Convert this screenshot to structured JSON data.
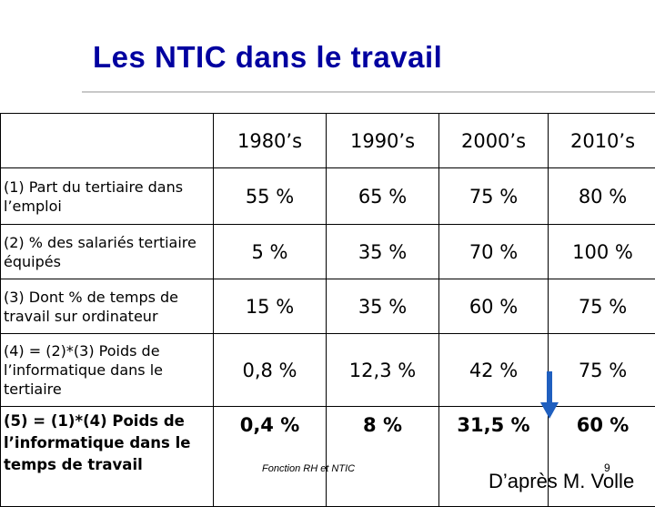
{
  "title": "Les NTIC dans le travail",
  "table": {
    "headers": [
      "",
      "1980’s",
      "1990’s",
      "2000’s",
      "2010’s"
    ],
    "rows": [
      {
        "label": "(1) Part du tertiaire dans l’emploi",
        "values": [
          "55 %",
          "65 %",
          "75 %",
          "80 %"
        ],
        "bold": false
      },
      {
        "label": "(2) % des salariés tertiaire équipés",
        "values": [
          "5 %",
          "35 %",
          "70 %",
          "100 %"
        ],
        "bold": false
      },
      {
        "label": "(3) Dont % de temps de travail sur ordinateur",
        "values": [
          "15 %",
          "35 %",
          "60 %",
          "75 %"
        ],
        "bold": false
      },
      {
        "label": "(4) = (2)*(3) Poids de l’informatique dans le tertiaire",
        "values": [
          "0,8 %",
          "12,3 %",
          "42 %",
          "75 %"
        ],
        "bold": false
      },
      {
        "label": "(5) = (1)*(4) Poids de l’informatique dans le temps de travail",
        "values": [
          "0,4 %",
          "8 %",
          "31,5 %",
          "60 %"
        ],
        "bold": true
      }
    ]
  },
  "arrow_icon": "down-arrow-icon",
  "arrow_color": "#1f5fbf",
  "title_color": "#0000a0",
  "footer": "Fonction RH et NTIC",
  "page_number": "9",
  "attribution": "D’après M. Volle"
}
